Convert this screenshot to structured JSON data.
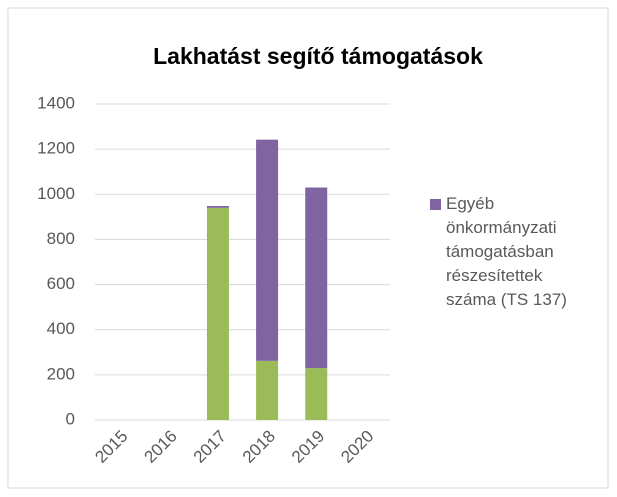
{
  "chart_data": {
    "type": "stacked_bar",
    "title": "Lakhatást segítő támogatások",
    "categories": [
      "2015",
      "2016",
      "2017",
      "2018",
      "2019",
      "2020"
    ],
    "series": [
      {
        "color": "#9bbb59",
        "values": [
          null,
          null,
          940,
          262,
          230,
          null
        ]
      },
      {
        "name": "Egyéb önkormányzati támogatásban részesítettek száma (TS 137)",
        "color": "#8064a2",
        "values": [
          null,
          null,
          8,
          980,
          800,
          null
        ]
      }
    ],
    "ylim": [
      0,
      1400
    ],
    "yticks": [
      0,
      200,
      400,
      600,
      800,
      1000,
      1200,
      1400
    ],
    "grid": true,
    "legend": "right"
  }
}
